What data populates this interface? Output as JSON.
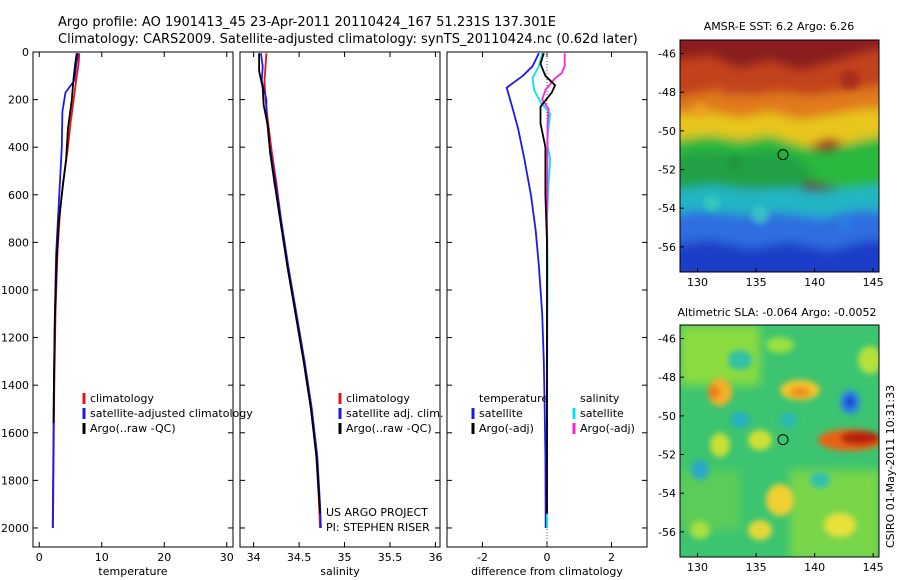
{
  "header": {
    "line1": "Argo profile: AO 1901413_45 23-Apr-2011 20110424_167 51.231S 137.301E",
    "line2": "Climatology: CARS2009. Satellite-adjusted climatology: synTS_20110424.nc (0.62d later)"
  },
  "side_text": "CSIRO 01-May-2011 10:31:33",
  "colors": {
    "red": "#ee1111",
    "blue": "#1a1aee",
    "black": "#000000",
    "cyan": "#00e5ee",
    "magenta": "#ff22dd",
    "dotted": "#555555"
  },
  "chart_data": [
    {
      "type": "line",
      "id": "temperature",
      "xlabel": "temperature",
      "xlim": [
        -1,
        31
      ],
      "ylim": [
        2080,
        0
      ],
      "xticks": [
        "0",
        "10",
        "20",
        "30"
      ],
      "xtick_values": [
        0,
        10,
        20,
        30
      ],
      "yticks": [
        "0",
        "200",
        "400",
        "600",
        "800",
        "1000",
        "1200",
        "1400",
        "1600",
        "1800",
        "2000"
      ],
      "ytick_values": [
        0,
        200,
        400,
        600,
        800,
        1000,
        1200,
        1400,
        1600,
        1800,
        2000
      ],
      "legend": [
        {
          "label": "climatology",
          "color": "red"
        },
        {
          "label": "satellite-adjusted climatology",
          "color": "blue"
        },
        {
          "label": "Argo(..raw -QC)",
          "color": "black"
        }
      ],
      "series": [
        {
          "color": "red",
          "points": [
            [
              6.4,
              5
            ],
            [
              6.3,
              50
            ],
            [
              6.0,
              100
            ],
            [
              5.6,
              180
            ],
            [
              5.0,
              300
            ],
            [
              4.5,
              420
            ],
            [
              3.8,
              550
            ],
            [
              3.3,
              680
            ],
            [
              2.9,
              850
            ],
            [
              2.6,
              1100
            ],
            [
              2.4,
              1400
            ],
            [
              2.3,
              1700
            ],
            [
              2.2,
              2000
            ]
          ]
        },
        {
          "color": "blue",
          "points": [
            [
              6.2,
              5
            ],
            [
              5.9,
              60
            ],
            [
              5.6,
              120
            ],
            [
              4.2,
              170
            ],
            [
              3.7,
              250
            ],
            [
              3.6,
              400
            ],
            [
              3.3,
              550
            ],
            [
              3.0,
              700
            ],
            [
              2.7,
              850
            ],
            [
              2.5,
              1100
            ],
            [
              2.35,
              1400
            ],
            [
              2.25,
              1700
            ],
            [
              2.15,
              2000
            ]
          ]
        },
        {
          "color": "black",
          "points": [
            [
              6.0,
              5
            ],
            [
              5.8,
              40
            ],
            [
              5.5,
              110
            ],
            [
              5.2,
              200
            ],
            [
              4.6,
              320
            ],
            [
              4.3,
              450
            ],
            [
              3.6,
              600
            ],
            [
              3.1,
              720
            ],
            [
              2.8,
              860
            ],
            [
              2.5,
              1100
            ],
            [
              2.35,
              1400
            ],
            [
              2.3,
              1560
            ]
          ]
        }
      ]
    },
    {
      "type": "line",
      "id": "salinity",
      "xlabel": "salinity",
      "xlim": [
        33.85,
        36.05
      ],
      "ylim": [
        2080,
        0
      ],
      "xticks": [
        "34",
        "34.5",
        "35",
        "35.5",
        "36"
      ],
      "xtick_values": [
        34,
        34.5,
        35,
        35.5,
        36
      ],
      "legend": [
        {
          "label": "climatology",
          "color": "red"
        },
        {
          "label": "satellite adj. clim.",
          "color": "blue"
        },
        {
          "label": "Argo(..raw -QC)",
          "color": "black"
        }
      ],
      "annotation": [
        "US ARGO PROJECT",
        "PI: STEPHEN RISER"
      ],
      "series": [
        {
          "color": "red",
          "points": [
            [
              34.14,
              5
            ],
            [
              34.13,
              60
            ],
            [
              34.12,
              120
            ],
            [
              34.13,
              200
            ],
            [
              34.16,
              300
            ],
            [
              34.2,
              420
            ],
            [
              34.25,
              550
            ],
            [
              34.3,
              700
            ],
            [
              34.38,
              900
            ],
            [
              34.47,
              1100
            ],
            [
              34.56,
              1300
            ],
            [
              34.64,
              1500
            ],
            [
              34.69,
              1700
            ],
            [
              34.72,
              1900
            ],
            [
              34.73,
              2000
            ]
          ]
        },
        {
          "color": "blue",
          "points": [
            [
              34.08,
              5
            ],
            [
              34.1,
              60
            ],
            [
              34.09,
              120
            ],
            [
              34.14,
              200
            ],
            [
              34.14,
              260
            ],
            [
              34.17,
              380
            ],
            [
              34.24,
              550
            ],
            [
              34.3,
              700
            ],
            [
              34.38,
              900
            ],
            [
              34.47,
              1100
            ],
            [
              34.56,
              1300
            ],
            [
              34.64,
              1500
            ],
            [
              34.7,
              1700
            ],
            [
              34.73,
              1900
            ],
            [
              34.74,
              2000
            ]
          ]
        },
        {
          "color": "black",
          "points": [
            [
              34.06,
              5
            ],
            [
              34.06,
              80
            ],
            [
              34.1,
              150
            ],
            [
              34.11,
              220
            ],
            [
              34.16,
              320
            ],
            [
              34.18,
              420
            ],
            [
              34.23,
              550
            ],
            [
              34.29,
              700
            ],
            [
              34.37,
              900
            ],
            [
              34.46,
              1100
            ],
            [
              34.55,
              1300
            ],
            [
              34.63,
              1500
            ],
            [
              34.69,
              1700
            ],
            [
              34.72,
              1870
            ],
            [
              34.73,
              1940
            ]
          ]
        }
      ]
    },
    {
      "type": "line",
      "id": "difference",
      "xlabel": "difference from climatology",
      "xlim": [
        -3.1,
        3.1
      ],
      "ylim": [
        2080,
        0
      ],
      "xticks": [
        "-2",
        "0",
        "2"
      ],
      "xtick_values": [
        -2,
        0,
        2
      ],
      "legend_left": [
        {
          "label": "temperature",
          "color": "none"
        },
        {
          "label": "satellite",
          "color": "blue"
        },
        {
          "label": "Argo(-adj)",
          "color": "black"
        }
      ],
      "legend_right": [
        {
          "label": "salinity",
          "color": "none"
        },
        {
          "label": "satellite",
          "color": "cyan"
        },
        {
          "label": "Argo(-adj)",
          "color": "magenta"
        }
      ],
      "series": [
        {
          "color": "blue",
          "points": [
            [
              -0.25,
              5
            ],
            [
              -0.45,
              60
            ],
            [
              -0.75,
              100
            ],
            [
              -1.25,
              150
            ],
            [
              -1.1,
              220
            ],
            [
              -0.9,
              320
            ],
            [
              -0.7,
              450
            ],
            [
              -0.5,
              600
            ],
            [
              -0.35,
              750
            ],
            [
              -0.25,
              900
            ],
            [
              -0.15,
              1100
            ],
            [
              -0.1,
              1300
            ],
            [
              -0.07,
              1500
            ],
            [
              -0.05,
              1700
            ],
            [
              -0.04,
              2000
            ]
          ]
        },
        {
          "color": "cyan",
          "points": [
            [
              -0.15,
              5
            ],
            [
              -0.25,
              60
            ],
            [
              -0.45,
              110
            ],
            [
              -0.4,
              160
            ],
            [
              -0.2,
              210
            ],
            [
              0.1,
              260
            ],
            [
              0.05,
              320
            ],
            [
              0.0,
              380
            ],
            [
              0.1,
              450
            ],
            [
              0.05,
              550
            ],
            [
              0.0,
              700
            ],
            [
              0.02,
              900
            ],
            [
              0.01,
              1200
            ],
            [
              0.0,
              1600
            ],
            [
              0.0,
              2000
            ]
          ]
        },
        {
          "color": "magenta",
          "points": [
            [
              0.55,
              5
            ],
            [
              0.55,
              60
            ],
            [
              0.45,
              90
            ],
            [
              0.25,
              110
            ],
            [
              -0.05,
              160
            ],
            [
              -0.15,
              200
            ],
            [
              0.05,
              240
            ],
            [
              0.02,
              300
            ],
            [
              0.01,
              500
            ],
            [
              0.0,
              800
            ],
            [
              0.0,
              1100
            ],
            [
              0.0,
              1400
            ],
            [
              0.0,
              1700
            ],
            [
              0.0,
              1940
            ]
          ]
        },
        {
          "color": "black",
          "points": [
            [
              -0.1,
              5
            ],
            [
              -0.2,
              50
            ],
            [
              -0.05,
              100
            ],
            [
              0.25,
              140
            ],
            [
              0.15,
              170
            ],
            [
              -0.2,
              230
            ],
            [
              -0.2,
              300
            ],
            [
              -0.05,
              400
            ],
            [
              -0.05,
              600
            ],
            [
              0.0,
              800
            ],
            [
              0.0,
              1000
            ],
            [
              0.0,
              1300
            ],
            [
              0.0,
              1600
            ],
            [
              0.0,
              1940
            ]
          ]
        }
      ]
    },
    {
      "type": "heatmap",
      "id": "sst",
      "title": "AMSR-E SST: 6.2 Argo: 6.26",
      "xlim": [
        128.5,
        145.5
      ],
      "ylim": [
        -57.3,
        -45.3
      ],
      "xticks": [
        "130",
        "135",
        "140",
        "145"
      ],
      "xtick_values": [
        130,
        135,
        140,
        145
      ],
      "yticks": [
        "-46",
        "-48",
        "-50",
        "-52",
        "-54",
        "-56"
      ],
      "ytick_values": [
        -46,
        -48,
        -50,
        -52,
        -54,
        -56
      ],
      "marker": [
        137.3,
        -51.23
      ]
    },
    {
      "type": "heatmap",
      "id": "sla",
      "title": "Altimetric SLA: -0.064 Argo: -0.0052",
      "xlim": [
        128.5,
        145.5
      ],
      "ylim": [
        -57.3,
        -45.3
      ],
      "xticks": [
        "130",
        "135",
        "140",
        "145"
      ],
      "xtick_values": [
        130,
        135,
        140,
        145
      ],
      "yticks": [
        "-46",
        "-48",
        "-50",
        "-52",
        "-54",
        "-56"
      ],
      "ytick_values": [
        -46,
        -48,
        -50,
        -52,
        -54,
        -56
      ],
      "marker": [
        137.3,
        -51.23
      ]
    }
  ]
}
